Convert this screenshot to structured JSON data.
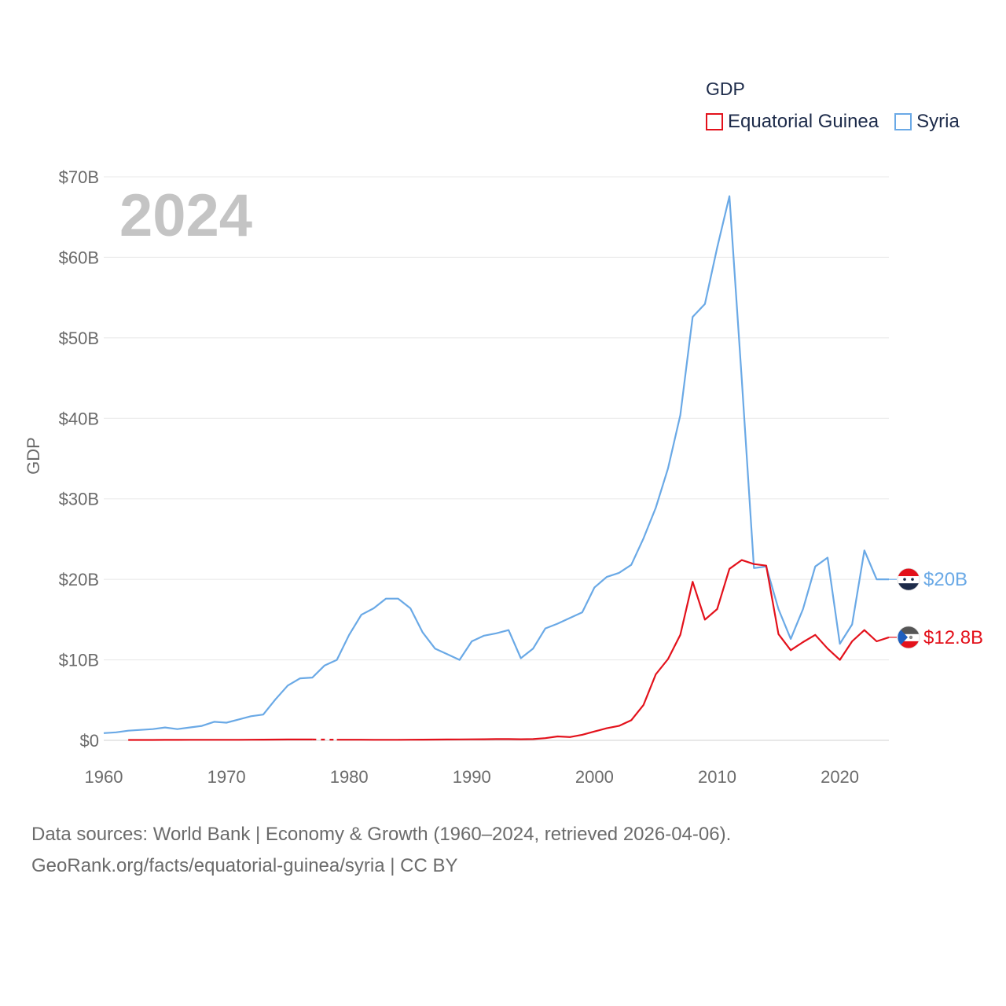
{
  "legend": {
    "title": "GDP",
    "items": [
      {
        "label": "Equatorial Guinea",
        "color": "#e3111b"
      },
      {
        "label": "Syria",
        "color": "#6aa9e6"
      }
    ]
  },
  "source": {
    "line1": "Data sources: World Bank | Economy & Growth (1960–2024, retrieved 2026-04-06).",
    "line2": "GeoRank.org/facts/equatorial-guinea/syria | CC BY"
  },
  "chart_data": {
    "type": "line",
    "title": "GDP",
    "year_label": "2024",
    "xlabel": "",
    "ylabel": "GDP",
    "xlim": [
      1960,
      2024
    ],
    "ylim": [
      0,
      70
    ],
    "x_ticks": [
      1960,
      1970,
      1980,
      1990,
      2000,
      2010,
      2020
    ],
    "y_ticks": [
      {
        "value": 0,
        "label": "$0"
      },
      {
        "value": 10,
        "label": "$10B"
      },
      {
        "value": 20,
        "label": "$20B"
      },
      {
        "value": 30,
        "label": "$30B"
      },
      {
        "value": 40,
        "label": "$40B"
      },
      {
        "value": 50,
        "label": "$50B"
      },
      {
        "value": 60,
        "label": "$60B"
      },
      {
        "value": 70,
        "label": "$70B"
      }
    ],
    "series": [
      {
        "name": "Syria",
        "color": "#6aa9e6",
        "end_label": "$20B",
        "flag": "syria-flag-icon",
        "points": [
          [
            1960,
            0.9
          ],
          [
            1961,
            1.0
          ],
          [
            1962,
            1.2
          ],
          [
            1963,
            1.3
          ],
          [
            1964,
            1.4
          ],
          [
            1965,
            1.6
          ],
          [
            1966,
            1.4
          ],
          [
            1967,
            1.6
          ],
          [
            1968,
            1.8
          ],
          [
            1969,
            2.3
          ],
          [
            1970,
            2.2
          ],
          [
            1971,
            2.6
          ],
          [
            1972,
            3.0
          ],
          [
            1973,
            3.2
          ],
          [
            1974,
            5.1
          ],
          [
            1975,
            6.8
          ],
          [
            1976,
            7.7
          ],
          [
            1977,
            7.8
          ],
          [
            1978,
            9.3
          ],
          [
            1979,
            10.0
          ],
          [
            1980,
            13.1
          ],
          [
            1981,
            15.6
          ],
          [
            1982,
            16.4
          ],
          [
            1983,
            17.6
          ],
          [
            1984,
            17.6
          ],
          [
            1985,
            16.4
          ],
          [
            1986,
            13.4
          ],
          [
            1987,
            11.4
          ],
          [
            1988,
            10.7
          ],
          [
            1989,
            10.0
          ],
          [
            1990,
            12.3
          ],
          [
            1991,
            13.0
          ],
          [
            1992,
            13.3
          ],
          [
            1993,
            13.7
          ],
          [
            1994,
            10.2
          ],
          [
            1995,
            11.4
          ],
          [
            1996,
            13.9
          ],
          [
            1997,
            14.5
          ],
          [
            1998,
            15.2
          ],
          [
            1999,
            15.9
          ],
          [
            2000,
            19.0
          ],
          [
            2001,
            20.3
          ],
          [
            2002,
            20.8
          ],
          [
            2003,
            21.8
          ],
          [
            2004,
            25.1
          ],
          [
            2005,
            28.9
          ],
          [
            2006,
            33.8
          ],
          [
            2007,
            40.4
          ],
          [
            2008,
            52.6
          ],
          [
            2009,
            54.2
          ],
          [
            2010,
            61.2
          ],
          [
            2011,
            67.6
          ],
          [
            2012,
            45.0
          ],
          [
            2013,
            21.4
          ],
          [
            2014,
            21.6
          ],
          [
            2015,
            16.3
          ],
          [
            2016,
            12.6
          ],
          [
            2017,
            16.3
          ],
          [
            2018,
            21.6
          ],
          [
            2019,
            22.7
          ],
          [
            2020,
            12.0
          ],
          [
            2021,
            14.4
          ],
          [
            2022,
            23.6
          ],
          [
            2023,
            20.0
          ],
          [
            2024,
            20.0
          ]
        ]
      },
      {
        "name": "Equatorial Guinea",
        "color": "#e3111b",
        "end_label": "$12.8B",
        "flag": "equatorial-guinea-flag-icon",
        "points": [
          [
            1962,
            0.05
          ],
          [
            1963,
            0.05
          ],
          [
            1964,
            0.05
          ],
          [
            1965,
            0.06
          ],
          [
            1966,
            0.06
          ],
          [
            1967,
            0.07
          ],
          [
            1968,
            0.07
          ],
          [
            1969,
            0.07
          ],
          [
            1970,
            0.07
          ],
          [
            1971,
            0.07
          ],
          [
            1972,
            0.08
          ],
          [
            1973,
            0.09
          ],
          [
            1974,
            0.1
          ],
          [
            1975,
            0.11
          ],
          [
            1976,
            0.11
          ],
          [
            1977,
            0.11
          ],
          [
            1979,
            0.08
          ],
          [
            1980,
            0.08
          ],
          [
            1981,
            0.08
          ],
          [
            1982,
            0.07
          ],
          [
            1983,
            0.07
          ],
          [
            1984,
            0.07
          ],
          [
            1985,
            0.08
          ],
          [
            1986,
            0.09
          ],
          [
            1987,
            0.1
          ],
          [
            1988,
            0.11
          ],
          [
            1989,
            0.12
          ],
          [
            1990,
            0.13
          ],
          [
            1991,
            0.14
          ],
          [
            1992,
            0.16
          ],
          [
            1993,
            0.16
          ],
          [
            1994,
            0.14
          ],
          [
            1995,
            0.16
          ],
          [
            1996,
            0.27
          ],
          [
            1997,
            0.49
          ],
          [
            1998,
            0.41
          ],
          [
            1999,
            0.69
          ],
          [
            2000,
            1.1
          ],
          [
            2001,
            1.5
          ],
          [
            2002,
            1.8
          ],
          [
            2003,
            2.5
          ],
          [
            2004,
            4.4
          ],
          [
            2005,
            8.2
          ],
          [
            2006,
            10.1
          ],
          [
            2007,
            13.1
          ],
          [
            2008,
            19.7
          ],
          [
            2009,
            15.0
          ],
          [
            2010,
            16.3
          ],
          [
            2011,
            21.3
          ],
          [
            2012,
            22.4
          ],
          [
            2013,
            21.9
          ],
          [
            2014,
            21.7
          ],
          [
            2015,
            13.2
          ],
          [
            2016,
            11.2
          ],
          [
            2017,
            12.2
          ],
          [
            2018,
            13.1
          ],
          [
            2019,
            11.4
          ],
          [
            2020,
            10.0
          ],
          [
            2021,
            12.3
          ],
          [
            2022,
            13.7
          ],
          [
            2023,
            12.3
          ],
          [
            2024,
            12.8
          ]
        ]
      }
    ]
  }
}
